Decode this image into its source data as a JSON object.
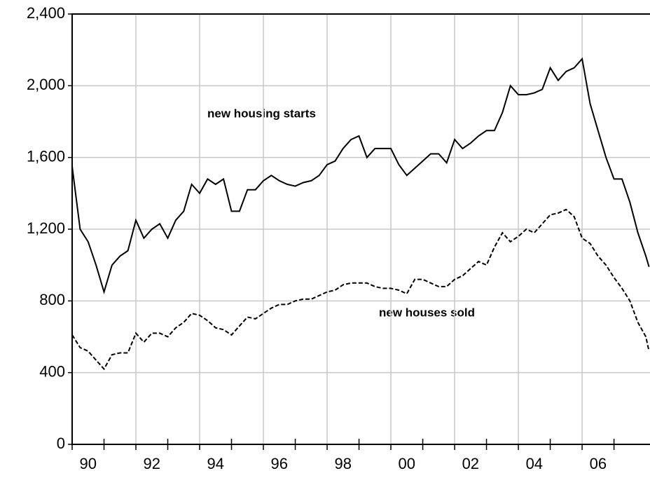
{
  "chart_data": {
    "type": "line",
    "x": [
      1990.0,
      1990.25,
      1990.5,
      1990.75,
      1991.0,
      1991.25,
      1991.5,
      1991.75,
      1992.0,
      1992.25,
      1992.5,
      1992.75,
      1993.0,
      1993.25,
      1993.5,
      1993.75,
      1994.0,
      1994.25,
      1994.5,
      1994.75,
      1995.0,
      1995.25,
      1995.5,
      1995.75,
      1996.0,
      1996.25,
      1996.5,
      1996.75,
      1997.0,
      1997.25,
      1997.5,
      1997.75,
      1998.0,
      1998.25,
      1998.5,
      1998.75,
      1999.0,
      1999.25,
      1999.5,
      1999.75,
      2000.0,
      2000.25,
      2000.5,
      2000.75,
      2001.0,
      2001.25,
      2001.5,
      2001.75,
      2002.0,
      2002.25,
      2002.5,
      2002.75,
      2003.0,
      2003.25,
      2003.5,
      2003.75,
      2004.0,
      2004.25,
      2004.5,
      2004.75,
      2005.0,
      2005.25,
      2005.5,
      2005.75,
      2006.0,
      2006.25,
      2006.5,
      2006.75,
      2007.0,
      2007.25,
      2007.5,
      2007.75,
      2008.0,
      2008.1
    ],
    "series": [
      {
        "name": "new housing starts",
        "color": "#000000",
        "dash": "solid",
        "values": [
          1550,
          1200,
          1130,
          1000,
          850,
          1000,
          1050,
          1080,
          1250,
          1150,
          1200,
          1230,
          1150,
          1250,
          1300,
          1450,
          1400,
          1480,
          1450,
          1480,
          1300,
          1300,
          1420,
          1420,
          1470,
          1500,
          1470,
          1450,
          1440,
          1460,
          1470,
          1500,
          1560,
          1580,
          1650,
          1700,
          1720,
          1600,
          1650,
          1650,
          1650,
          1560,
          1500,
          1540,
          1580,
          1620,
          1620,
          1570,
          1700,
          1650,
          1680,
          1720,
          1750,
          1750,
          1850,
          2000,
          1950,
          1950,
          1960,
          1980,
          2100,
          2030,
          2080,
          2100,
          2150,
          1900,
          1750,
          1600,
          1480,
          1480,
          1350,
          1180,
          1050,
          990
        ]
      },
      {
        "name": "new houses sold",
        "color": "#000000",
        "dash": "dashed",
        "values": [
          610,
          540,
          520,
          470,
          420,
          500,
          510,
          510,
          620,
          570,
          620,
          620,
          600,
          650,
          680,
          730,
          720,
          690,
          650,
          640,
          610,
          660,
          710,
          700,
          730,
          760,
          780,
          780,
          800,
          810,
          810,
          830,
          850,
          860,
          890,
          900,
          900,
          900,
          880,
          870,
          870,
          860,
          840,
          920,
          920,
          900,
          880,
          880,
          920,
          940,
          980,
          1020,
          1000,
          1100,
          1180,
          1130,
          1160,
          1200,
          1180,
          1230,
          1280,
          1290,
          1310,
          1270,
          1150,
          1120,
          1050,
          1000,
          930,
          870,
          800,
          680,
          600,
          520
        ]
      }
    ],
    "xlim": [
      1990,
      2008.13
    ],
    "xticks": [
      {
        "value": 1990,
        "label": "90"
      },
      {
        "value": 1992,
        "label": "92"
      },
      {
        "value": 1994,
        "label": "94"
      },
      {
        "value": 1996,
        "label": "96"
      },
      {
        "value": 1998,
        "label": "98"
      },
      {
        "value": 2000,
        "label": "00"
      },
      {
        "value": 2002,
        "label": "02"
      },
      {
        "value": 2004,
        "label": "04"
      },
      {
        "value": 2006,
        "label": "06"
      }
    ],
    "xminor_ticks": [
      1991,
      1993,
      1995,
      1997,
      1999,
      2001,
      2003,
      2005,
      2007
    ],
    "ylim": [
      0,
      2400
    ],
    "yticks": [
      0,
      400,
      800,
      {
        "value": 1200,
        "label": "1,200"
      },
      {
        "value": 1600,
        "label": "1,600"
      },
      {
        "value": 2000,
        "label": "2,000"
      },
      {
        "value": 2400,
        "label": "2,400"
      }
    ],
    "grid": true
  }
}
